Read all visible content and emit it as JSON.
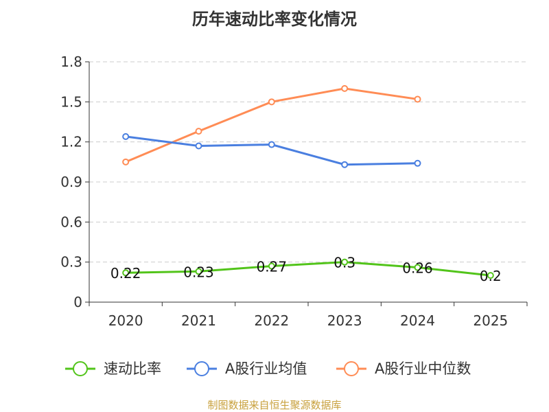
{
  "chart_data": {
    "type": "line",
    "title": "历年速动比率变化情况",
    "categories": [
      "2020",
      "2021",
      "2022",
      "2023",
      "2024",
      "2025"
    ],
    "ylim": [
      0,
      1.8
    ],
    "yticks": [
      "0",
      "0.3",
      "0.6",
      "0.9",
      "1.2",
      "1.5",
      "1.8"
    ],
    "grid": true,
    "legend_position": "bottom",
    "series": [
      {
        "name": "速动比率",
        "color": "#52c41a",
        "values": [
          0.22,
          0.23,
          0.27,
          0.3,
          0.26,
          0.2
        ],
        "labels": [
          "0.22",
          "0.23",
          "0.27",
          "0.3",
          "0.26",
          "0.2"
        ]
      },
      {
        "name": "A股行业均值",
        "color": "#4a7fe0",
        "values": [
          1.24,
          1.17,
          1.18,
          1.03,
          1.04,
          null
        ]
      },
      {
        "name": "A股行业中位数",
        "color": "#ff8c55",
        "values": [
          1.05,
          1.28,
          1.5,
          1.6,
          1.52,
          null
        ]
      }
    ]
  },
  "source": "制图数据来自恒生聚源数据库"
}
